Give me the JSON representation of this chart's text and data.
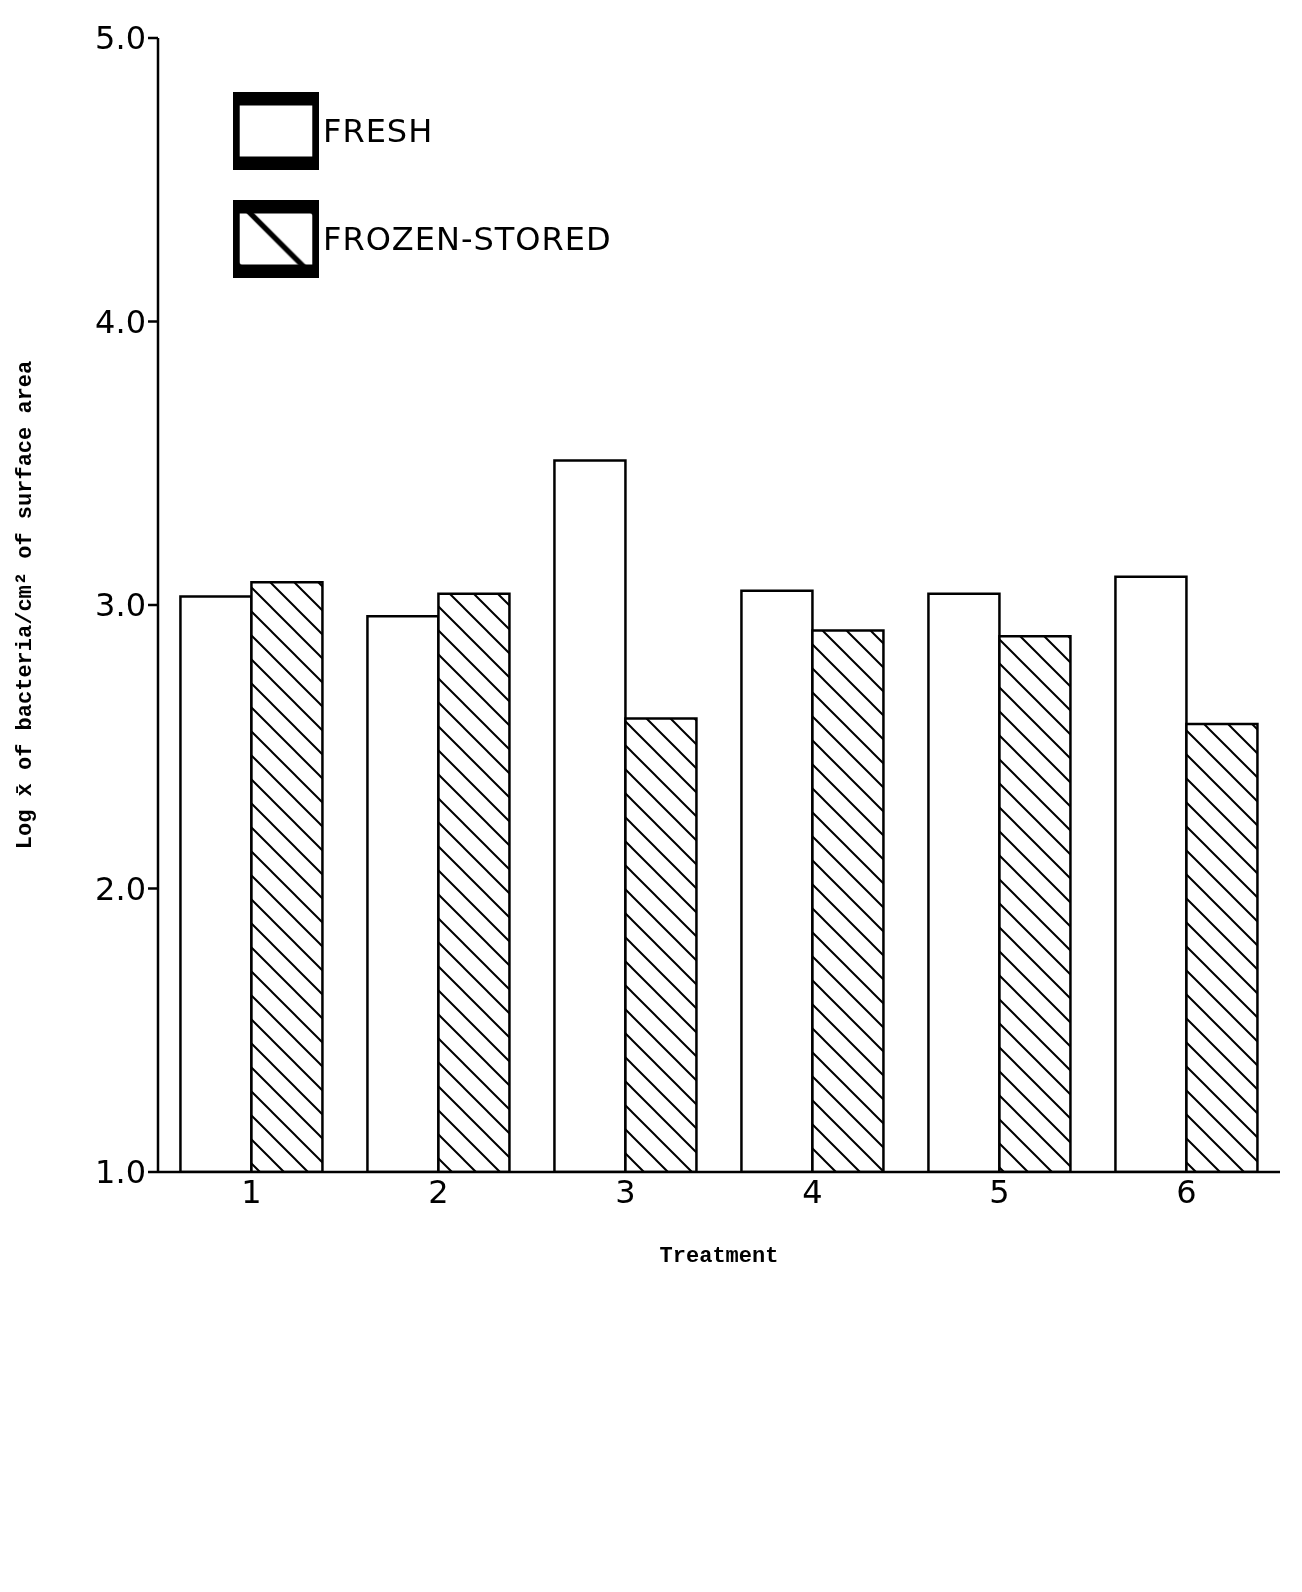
{
  "chart_data": {
    "type": "bar",
    "xlabel": "Treatment",
    "ylabel": "Log x̄ of bacteria/cm² of surface area",
    "categories": [
      "1",
      "2",
      "3",
      "4",
      "5",
      "6"
    ],
    "series": [
      {
        "name": "FRESH",
        "color": "#ffffff",
        "values": [
          3.03,
          2.96,
          3.51,
          3.05,
          3.04,
          3.1
        ]
      },
      {
        "name": "FROZEN-STORED",
        "color": "#000000",
        "values": [
          3.08,
          3.04,
          2.6,
          2.91,
          2.89,
          2.58
        ]
      }
    ],
    "ylim": [
      1,
      5
    ],
    "yticks": [
      {
        "value": 1,
        "label": "1.0"
      },
      {
        "value": 2,
        "label": "2.0"
      },
      {
        "value": 3,
        "label": "3.0"
      },
      {
        "value": 4,
        "label": "4.0"
      },
      {
        "value": 5,
        "label": "5.0"
      }
    ],
    "legend": "top left"
  }
}
